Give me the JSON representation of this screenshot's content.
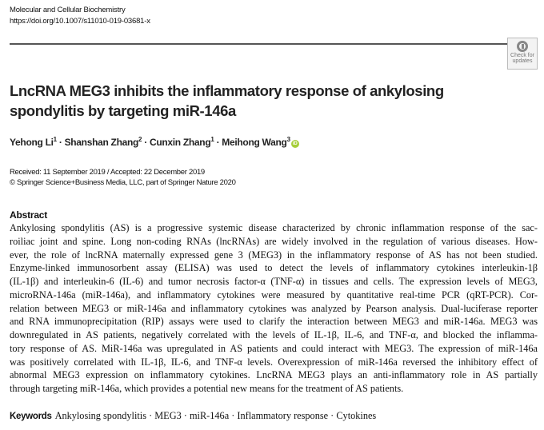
{
  "header": {
    "journal": "Molecular and Cellular Biochemistry",
    "doi": "https://doi.org/10.1007/s11010-019-03681-x",
    "badge": {
      "icon": "check-for-updates-icon",
      "line1": "Check for",
      "line2": "updates"
    }
  },
  "title_lines": [
    "LncRNA MEG3 inhibits the inflammatory response of ankylosing",
    "spondylitis by targeting miR-146a"
  ],
  "authors": [
    {
      "name": "Yehong Li",
      "aff": "1"
    },
    {
      "name": "Shanshan Zhang",
      "aff": "2"
    },
    {
      "name": "Cunxin Zhang",
      "aff": "1"
    },
    {
      "name": "Meihong Wang",
      "aff": "3",
      "orcid": "iD"
    }
  ],
  "separator": " · ",
  "dates": "Received: 11 September 2019 / Accepted: 22 December 2019",
  "copyright": "© Springer Science+Business Media, LLC, part of Springer Nature 2020",
  "abstract": {
    "heading": "Abstract",
    "lines": [
      "Ankylosing spondylitis (AS) is a progressive systemic disease characterized by chronic inflammation response of the sac-",
      "roiliac joint and spine. Long non-coding RNAs (lncRNAs) are widely involved in the regulation of various diseases. How-",
      "ever, the role of lncRNA maternally expressed gene 3 (MEG3) in the inflammatory response of AS has not been studied.",
      "Enzyme-linked immunosorbent assay (ELISA) was used to detect the levels of inflammatory cytokines interleukin-1β",
      "(IL-1β) and interleukin-6 (IL-6) and tumor necrosis factor-α (TNF-α) in tissues and cells. The expression levels of MEG3,",
      "microRNA-146a (miR-146a), and inflammatory cytokines were measured by quantitative real-time PCR (qRT-PCR). Cor-",
      "relation between MEG3 or miR-146a and inflammatory cytokines was analyzed by Pearson analysis. Dual-luciferase reporter",
      "and RNA immunoprecipitation (RIP) assays were used to clarify the interaction between MEG3 and miR-146a. MEG3 was",
      "downregulated in AS patients, negatively correlated with the levels of IL-1β, IL-6, and TNF-α, and blocked the inflamma-",
      "tory response of AS. MiR-146a was upregulated in AS patients and could interact with MEG3. The expression of miR-146a",
      "was positively correlated with IL-1β, IL-6, and TNF-α levels. Overexpression of miR-146a reversed the inhibitory effect of",
      "abnormal MEG3 expression on inflammatory cytokines. LncRNA MEG3 plays an anti-inflammatory role in AS partially",
      "through targeting miR-146a, which provides a potential new means for the treatment of AS patients."
    ]
  },
  "keywords": {
    "label": "Keywords",
    "value": "Ankylosing spondylitis · MEG3 · miR-146a · Inflammatory response · Cytokines"
  }
}
